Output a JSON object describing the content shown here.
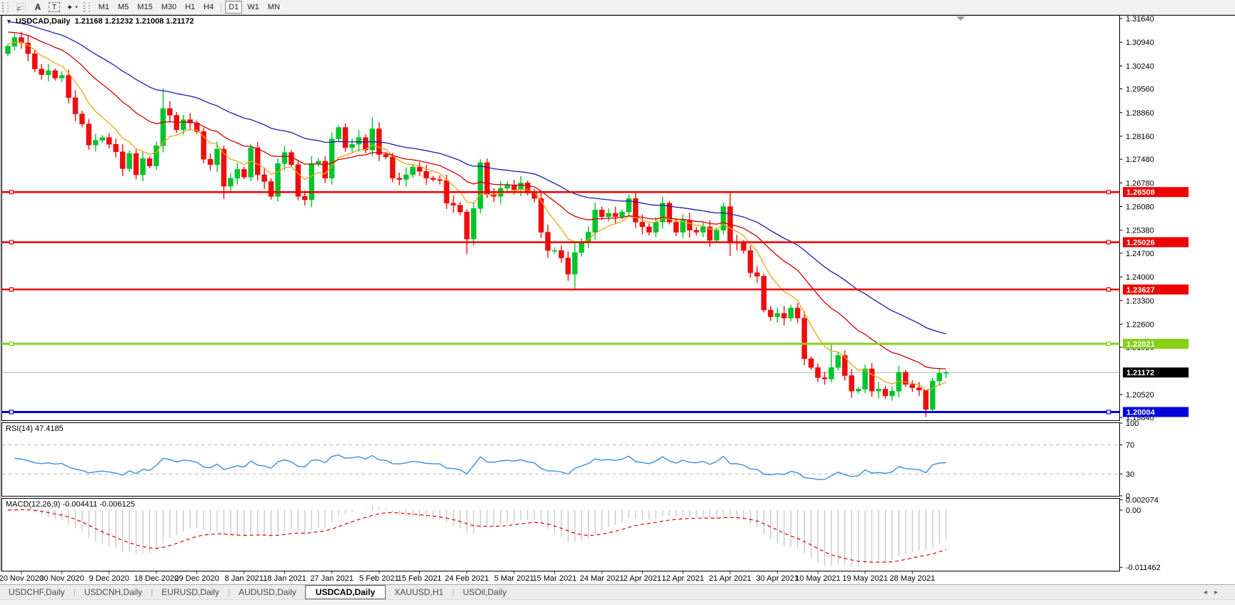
{
  "toolbar": {
    "tools": {
      "fibonacci": {
        "label": "F"
      },
      "text": {
        "label": "A"
      },
      "text_label": {
        "label": "T"
      },
      "arrows": {
        "label": "✦",
        "dropdown": "▾"
      }
    },
    "timeframes": [
      {
        "label": "M1",
        "active": false
      },
      {
        "label": "M5",
        "active": false
      },
      {
        "label": "M15",
        "active": false
      },
      {
        "label": "M30",
        "active": false
      },
      {
        "label": "H1",
        "active": false
      },
      {
        "label": "H4",
        "active": false
      },
      {
        "label": "D1",
        "active": true
      },
      {
        "label": "W1",
        "active": false
      },
      {
        "label": "MN",
        "active": false
      }
    ]
  },
  "chart": {
    "symbol": "USDCAD,Daily",
    "ohlc_text": "1.21168 1.21232 1.21008 1.21172",
    "dropdown_glyph": "▼",
    "up_color": "#00c42c",
    "down_color": "#ef0d0d",
    "price_axis": [
      {
        "label": "1.31640",
        "price": 1.3164
      },
      {
        "label": "1.30940",
        "price": 1.3094
      },
      {
        "label": "1.30240",
        "price": 1.3024
      },
      {
        "label": "1.29560",
        "price": 1.2956
      },
      {
        "label": "1.28860",
        "price": 1.2886
      },
      {
        "label": "1.28160",
        "price": 1.2816
      },
      {
        "label": "1.27480",
        "price": 1.2748
      },
      {
        "label": "1.26780",
        "price": 1.2678
      },
      {
        "label": "1.26080",
        "price": 1.2608
      },
      {
        "label": "1.25380",
        "price": 1.2538
      },
      {
        "label": "1.24700",
        "price": 1.247
      },
      {
        "label": "1.24000",
        "price": 1.24
      },
      {
        "label": "1.23300",
        "price": 1.233
      },
      {
        "label": "1.22600",
        "price": 1.226
      },
      {
        "label": "1.21920",
        "price": 1.2192
      },
      {
        "label": "1.20520",
        "price": 1.2052
      },
      {
        "label": "1.19840",
        "price": 1.1984
      }
    ],
    "hlines": [
      {
        "label": "1.26508",
        "price": 1.26508,
        "color": "#ee0000",
        "width": 2.5
      },
      {
        "label": "1.25026",
        "price": 1.25026,
        "color": "#ee0000",
        "width": 2.5
      },
      {
        "label": "1.23627",
        "price": 1.23627,
        "color": "#ee0000",
        "width": 2.5
      },
      {
        "label": "1.22021",
        "price": 1.22021,
        "color": "#86d117",
        "width": 3
      },
      {
        "label": "1.20004",
        "price": 1.20004,
        "color": "#0202dd",
        "width": 3
      }
    ],
    "current_price": {
      "label": "1.21172",
      "price": 1.21172,
      "line_color": "#ababab",
      "tag_bg": "#000000"
    },
    "candles": {
      "first_open": 1.306,
      "closes": [
        1.3082,
        1.3108,
        1.3092,
        1.306,
        1.3015,
        1.2998,
        1.301,
        1.2988,
        1.2996,
        1.293,
        1.2882,
        1.2852,
        1.279,
        1.2804,
        1.2812,
        1.2792,
        1.277,
        1.272,
        1.2765,
        1.2702,
        1.275,
        1.2728,
        1.2788,
        1.2898,
        1.2878,
        1.2835,
        1.2865,
        1.2855,
        1.283,
        1.2748,
        1.2732,
        1.2778,
        1.2668,
        1.2692,
        1.2718,
        1.2695,
        1.2782,
        1.2702,
        1.2682,
        1.2638,
        1.2735,
        1.2768,
        1.2732,
        1.2638,
        1.2628,
        1.2735,
        1.2742,
        1.2692,
        1.2808,
        1.2842,
        1.2782,
        1.2792,
        1.2812,
        1.2775,
        1.2838,
        1.2762,
        1.2755,
        1.2692,
        1.2688,
        1.2702,
        1.2725,
        1.2712,
        1.2692,
        1.2688,
        1.2685,
        1.2618,
        1.2612,
        1.2592,
        1.2512,
        1.2602,
        1.2738,
        1.2645,
        1.2638,
        1.2662,
        1.2672,
        1.2658,
        1.2678,
        1.2648,
        1.2632,
        1.2532,
        1.2478,
        1.2478,
        1.2456,
        1.2408,
        1.2472,
        1.2502,
        1.2532,
        1.2598,
        1.2578,
        1.2588,
        1.2578,
        1.2592,
        1.2632,
        1.2562,
        1.2548,
        1.2532,
        1.2562,
        1.2618,
        1.2562,
        1.2532,
        1.2568,
        1.2538,
        1.2532,
        1.2548,
        1.2508,
        1.2538,
        1.2608,
        1.2502,
        1.25,
        1.2478,
        1.2412,
        1.2402,
        1.2302,
        1.2282,
        1.2292,
        1.2278,
        1.2308,
        1.2278,
        1.2158,
        1.2132,
        1.2102,
        1.2098,
        1.2132,
        1.2168,
        1.2108,
        1.2062,
        1.2068,
        1.2128,
        1.2062,
        1.2068,
        1.2048,
        1.2062,
        1.2118,
        1.2082,
        1.2072,
        1.2065,
        1.2008,
        1.2092,
        1.2115,
        1.21172
      ],
      "wick_overrides": {
        "23": [
          1.2957,
          1.2768
        ],
        "32": [
          1.2788,
          1.263
        ],
        "54": [
          1.2872,
          1.2758
        ],
        "68": [
          1.26,
          1.2468
        ],
        "70": [
          1.2748,
          1.2588
        ],
        "84": [
          1.2502,
          1.2365
        ],
        "107": [
          1.265,
          1.2462
        ],
        "122": [
          1.22,
          1.2088
        ],
        "136": [
          1.2038,
          1.1986
        ],
        "139": [
          1.21232,
          1.21008
        ]
      },
      "last_bar": {
        "open": 1.21168,
        "high": 1.21232,
        "low": 1.21008,
        "close": 1.21172
      }
    },
    "moving_averages": [
      {
        "name": "ma-fast",
        "period": 8,
        "seed": 1.3092,
        "color": "#efa413"
      },
      {
        "name": "ma-mid",
        "period": 21,
        "seed": 1.3128,
        "color": "#d40000"
      },
      {
        "name": "ma-slow",
        "period": 42,
        "seed": 1.3158,
        "color": "#1c1cb4"
      }
    ],
    "shift_marker_color": "#9a9a9a"
  },
  "rsi": {
    "label": "RSI(14) 47.4185",
    "period": 14,
    "line_color": "#3a8fdd",
    "levels": [
      {
        "label": "100",
        "value": 100,
        "dashed": false
      },
      {
        "label": "70",
        "value": 70,
        "dashed": true
      },
      {
        "label": "30",
        "value": 30,
        "dashed": true
      },
      {
        "label": "0",
        "value": 0,
        "dashed": false
      }
    ]
  },
  "macd": {
    "label": "MACD(12,26,9) -0.004411 -0.006125",
    "fast": 12,
    "slow": 26,
    "signal": 9,
    "histogram_color": "#c6c6c6",
    "signal_color": "#e00000",
    "axis": [
      {
        "label": "0.002074",
        "value": 0.002074
      },
      {
        "label": "0.00",
        "value": 0.0
      },
      {
        "label": "-0.011462",
        "value": -0.011462
      }
    ]
  },
  "date_axis": [
    {
      "label": "20 Nov 2020",
      "idx": 2
    },
    {
      "label": "30 Nov 2020",
      "idx": 8
    },
    {
      "label": "9 Dec 2020",
      "idx": 15
    },
    {
      "label": "18 Dec 2020",
      "idx": 22
    },
    {
      "label": "29 Dec 2020",
      "idx": 28
    },
    {
      "label": "8 Jan 2021",
      "idx": 35
    },
    {
      "label": "18 Jan 2021",
      "idx": 41
    },
    {
      "label": "27 Jan 2021",
      "idx": 48
    },
    {
      "label": "5 Feb 2021",
      "idx": 55
    },
    {
      "label": "15 Feb 2021",
      "idx": 61
    },
    {
      "label": "24 Feb 2021",
      "idx": 68
    },
    {
      "label": "5 Mar 2021",
      "idx": 75
    },
    {
      "label": "15 Mar 2021",
      "idx": 81
    },
    {
      "label": "24 Mar 2021",
      "idx": 88
    },
    {
      "label": "2 Apr 2021",
      "idx": 94
    },
    {
      "label": "12 Apr 2021",
      "idx": 100
    },
    {
      "label": "21 Apr 2021",
      "idx": 107
    },
    {
      "label": "30 Apr 2021",
      "idx": 114
    },
    {
      "label": "10 May 2021",
      "idx": 120
    },
    {
      "label": "19 May 2021",
      "idx": 127
    },
    {
      "label": "28 May 2021",
      "idx": 134
    }
  ],
  "tabs": {
    "items": [
      {
        "label": "USDCHF,Daily",
        "active": false
      },
      {
        "label": "USDCNH,Daily",
        "active": false
      },
      {
        "label": "EURUSD,Daily",
        "active": false
      },
      {
        "label": "AUDUSD,Daily",
        "active": false
      },
      {
        "label": "USDCAD,Daily",
        "active": true
      },
      {
        "label": "XAUUSD,H1",
        "active": false
      },
      {
        "label": "USOil,Daily",
        "active": false
      }
    ],
    "scroll_left": "◂",
    "scroll_right": "▸"
  }
}
